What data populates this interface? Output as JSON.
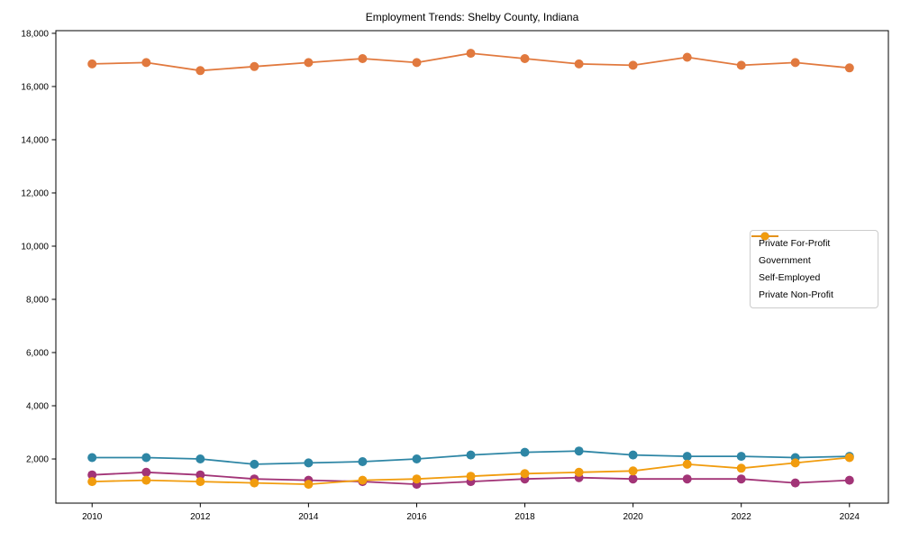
{
  "chart_data": {
    "type": "line",
    "title": "Employment Trends: Shelby County, Indiana",
    "xlabel": "",
    "ylabel": "",
    "grid": false,
    "legend_position": "center-right",
    "axis_color": "#000000",
    "x": [
      2010,
      2011,
      2012,
      2013,
      2014,
      2015,
      2016,
      2017,
      2018,
      2019,
      2020,
      2021,
      2022,
      2023,
      2024
    ],
    "x_ticks": [
      2010,
      2012,
      2014,
      2016,
      2018,
      2020,
      2022,
      2024
    ],
    "y_ticks": [
      2000,
      4000,
      6000,
      8000,
      10000,
      12000,
      14000,
      16000,
      18000
    ],
    "xlim": [
      2009.33,
      2024.72
    ],
    "ylim": [
      340,
      18100
    ],
    "series": [
      {
        "name": "Private For-Profit",
        "color": "#e1793e",
        "values": [
          16850,
          16900,
          16600,
          16750,
          16900,
          17050,
          16900,
          17250,
          17050,
          16850,
          16800,
          17100,
          16800,
          16900,
          16700
        ]
      },
      {
        "name": "Government",
        "color": "#2e86a5",
        "values": [
          2050,
          2050,
          2000,
          1800,
          1850,
          1900,
          2000,
          2150,
          2250,
          2300,
          2150,
          2100,
          2100,
          2050,
          2100
        ]
      },
      {
        "name": "Self-Employed",
        "color": "#a23477",
        "values": [
          1400,
          1500,
          1400,
          1250,
          1200,
          1150,
          1050,
          1150,
          1250,
          1300,
          1250,
          1250,
          1250,
          1100,
          1200
        ]
      },
      {
        "name": "Private Non-Profit",
        "color": "#f19c0e",
        "values": [
          1150,
          1200,
          1150,
          1100,
          1050,
          1200,
          1250,
          1350,
          1450,
          1500,
          1550,
          1800,
          1650,
          1850,
          2050
        ]
      }
    ]
  }
}
